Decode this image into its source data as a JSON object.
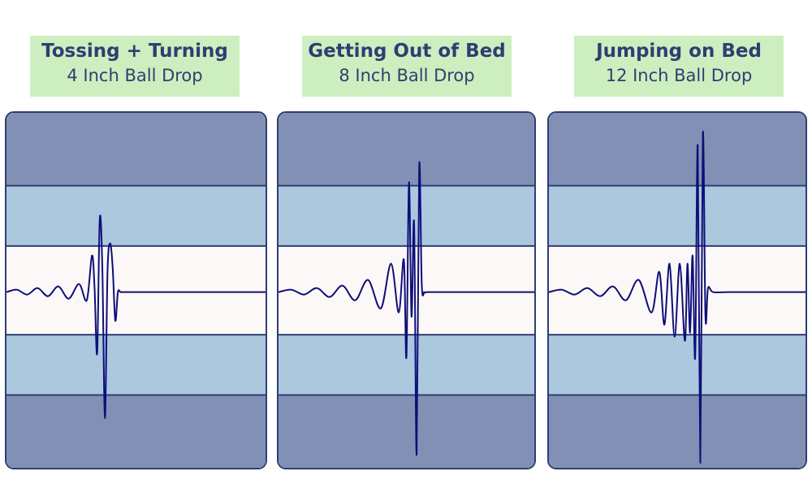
{
  "chart_data": [
    {
      "type": "line",
      "title": "Tossing + Turning",
      "subtitle": "4 Inch Ball Drop",
      "xlabel": "",
      "ylabel": "",
      "grid": false,
      "zones": {
        "outer": "#8390b5",
        "middle": "#abc8df",
        "center": "#fdf8f8"
      },
      "line_color": "#0e0f78",
      "series": [
        {
          "x": [
            0,
            4,
            8,
            12,
            16,
            20,
            24,
            28,
            31,
            33,
            34,
            35,
            36,
            37,
            38,
            39,
            40,
            41,
            42,
            43,
            44,
            45,
            46,
            47,
            48,
            49,
            50,
            60,
            70,
            80,
            90,
            100
          ],
          "y": [
            0,
            0.03,
            -0.03,
            0.05,
            -0.05,
            0.07,
            -0.08,
            0.1,
            -0.1,
            0.45,
            0.05,
            -0.75,
            0.9,
            0.3,
            -1.55,
            0.25,
            0.6,
            0.3,
            -0.35,
            0,
            0,
            0,
            0,
            0,
            0,
            0,
            0,
            0,
            0,
            0,
            0,
            0
          ]
        }
      ]
    },
    {
      "type": "line",
      "title": "Getting Out of Bed",
      "subtitle": "8 Inch Ball Drop",
      "xlabel": "",
      "ylabel": "",
      "grid": false,
      "zones": {
        "outer": "#8390b5",
        "middle": "#abc8df",
        "center": "#fdf8f8"
      },
      "line_color": "#0e0f78",
      "series": [
        {
          "x": [
            0,
            5,
            10,
            15,
            20,
            25,
            30,
            35,
            40,
            44,
            47,
            49,
            50,
            51,
            52,
            53,
            54,
            55,
            56,
            57,
            58,
            60,
            70,
            80,
            90,
            100
          ],
          "y": [
            0,
            0.03,
            -0.03,
            0.05,
            -0.06,
            0.08,
            -0.1,
            0.15,
            -0.2,
            0.35,
            -0.25,
            0.4,
            -0.8,
            1.35,
            -0.3,
            0.85,
            -2.0,
            1.55,
            0.1,
            0,
            0,
            0,
            0,
            0,
            0,
            0
          ]
        }
      ]
    },
    {
      "type": "line",
      "title": "Jumping on Bed",
      "subtitle": "12 Inch Ball Drop",
      "xlabel": "",
      "ylabel": "",
      "grid": false,
      "zones": {
        "outer": "#8390b5",
        "middle": "#abc8df",
        "center": "#fdf8f8"
      },
      "line_color": "#0e0f78",
      "series": [
        {
          "x": [
            0,
            5,
            10,
            15,
            20,
            25,
            30,
            35,
            40,
            43,
            45,
            47,
            49,
            51,
            53,
            54,
            55,
            56,
            57,
            58,
            59,
            60,
            61,
            62,
            64,
            70,
            80,
            90,
            100
          ],
          "y": [
            0,
            0.03,
            -0.03,
            0.05,
            -0.05,
            0.07,
            -0.1,
            0.15,
            -0.25,
            0.25,
            -0.4,
            0.35,
            -0.55,
            0.35,
            -0.6,
            0.35,
            -0.5,
            0.45,
            -0.8,
            1.8,
            -2.1,
            1.95,
            -0.3,
            0.05,
            0,
            0,
            0,
            0,
            0
          ]
        }
      ]
    }
  ]
}
